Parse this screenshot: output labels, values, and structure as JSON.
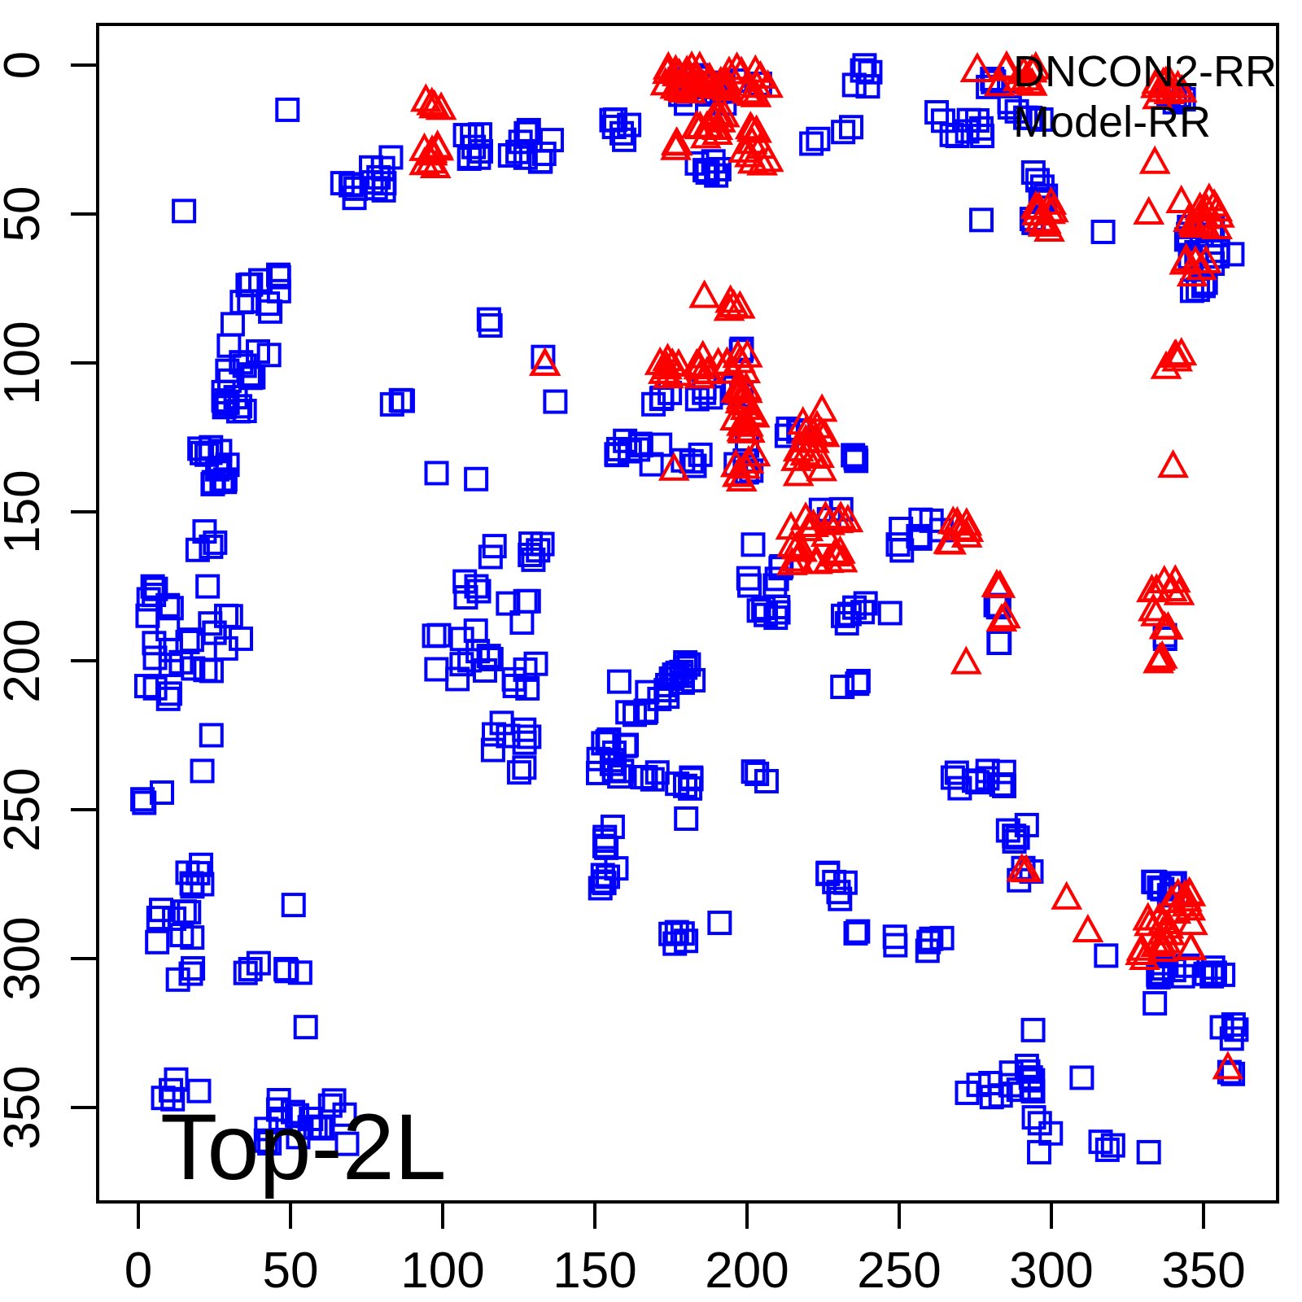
{
  "figure": {
    "background": "#FFFFFF",
    "text_color": "#000000"
  },
  "chart_data": {
    "type": "scatter",
    "title": "",
    "xlabel": "",
    "ylabel": "",
    "annotation": "Top-2L",
    "grid": false,
    "x_axis": {
      "ticks": [
        0,
        50,
        100,
        150,
        200,
        250,
        300,
        350
      ],
      "range": [
        -14,
        375
      ]
    },
    "y_axis": {
      "ticks": [
        0,
        50,
        100,
        150,
        200,
        250,
        300,
        350
      ],
      "range": [
        375,
        -14
      ],
      "reversed": true
    },
    "legend": {
      "position": "top-right",
      "entries": [
        {
          "label": "DNCON2-RR",
          "marker": "open-triangle",
          "color": "#FF0000"
        },
        {
          "label": "Model-RR",
          "marker": "open-square",
          "color": "#0000FF"
        }
      ]
    },
    "cluster_format": "[x, y, count, x_spread, y_spread] — residue-residue contact clusters read from plot",
    "series": [
      {
        "name": "Model-RR",
        "marker": "open-square",
        "color": "#0000FF",
        "clusters": [
          [
            49,
            15,
            1,
            0,
            0
          ],
          [
            75,
            40,
            12,
            8,
            6
          ],
          [
            83,
            31,
            1,
            0,
            0
          ],
          [
            112,
            28,
            8,
            5,
            5
          ],
          [
            15,
            49,
            1,
            0,
            0
          ],
          [
            40,
            77,
            10,
            7,
            8
          ],
          [
            31,
            87,
            1,
            0,
            0
          ],
          [
            36,
            100,
            10,
            8,
            6
          ],
          [
            30,
            113,
            9,
            5,
            4
          ],
          [
            85,
            114,
            3,
            2,
            2
          ],
          [
            130,
            27,
            10,
            8,
            7
          ],
          [
            158,
            23,
            6,
            4,
            5
          ],
          [
            190,
            8,
            16,
            18,
            5
          ],
          [
            238,
            3,
            5,
            4,
            5
          ],
          [
            221,
            25,
            2,
            3,
            2
          ],
          [
            233,
            22,
            2,
            2,
            2
          ],
          [
            187,
            35,
            6,
            4,
            3
          ],
          [
            197,
            95,
            2,
            2,
            1
          ],
          [
            115,
            86,
            2,
            1,
            2
          ],
          [
            270,
            20,
            8,
            8,
            5
          ],
          [
            292,
            16,
            6,
            8,
            4
          ],
          [
            281,
            6,
            4,
            3,
            4
          ],
          [
            297,
            45,
            8,
            4,
            9
          ],
          [
            277,
            52,
            1,
            0,
            0
          ],
          [
            317,
            56,
            1,
            0,
            0
          ],
          [
            352,
            60,
            14,
            8,
            7
          ],
          [
            348,
            74,
            4,
            3,
            2
          ],
          [
            340,
            10,
            4,
            4,
            4
          ],
          [
            22,
            128,
            6,
            5,
            3
          ],
          [
            27,
            137,
            8,
            6,
            4
          ],
          [
            98,
            137,
            1,
            0,
            0
          ],
          [
            111,
            139,
            1,
            0,
            0
          ],
          [
            22,
            160,
            4,
            4,
            4
          ],
          [
            18,
            190,
            26,
            16,
            16
          ],
          [
            7,
            211,
            4,
            6,
            3
          ],
          [
            24,
            225,
            1,
            0,
            0
          ],
          [
            105,
            198,
            12,
            12,
            9
          ],
          [
            109,
            177,
            4,
            4,
            4
          ],
          [
            117,
            164,
            2,
            2,
            4
          ],
          [
            118,
            225,
            3,
            2,
            5
          ],
          [
            133,
            98,
            1,
            0,
            0
          ],
          [
            137,
            113,
            1,
            0,
            0
          ],
          [
            172,
            111,
            4,
            4,
            3
          ],
          [
            186,
            112,
            4,
            4,
            4
          ],
          [
            196,
            112,
            3,
            3,
            4
          ],
          [
            199,
            133,
            5,
            3,
            6
          ],
          [
            165,
            128,
            10,
            8,
            7
          ],
          [
            182,
            131,
            4,
            4,
            4
          ],
          [
            217,
            122,
            4,
            4,
            3
          ],
          [
            232,
            130,
            4,
            4,
            3
          ],
          [
            227,
            151,
            3,
            4,
            2
          ],
          [
            207,
            177,
            12,
            9,
            9
          ],
          [
            202,
            161,
            1,
            0,
            0
          ],
          [
            234,
            184,
            6,
            5,
            5
          ],
          [
            247,
            184,
            1,
            0,
            0
          ],
          [
            250,
            160,
            3,
            3,
            5
          ],
          [
            128,
            164,
            5,
            5,
            5
          ],
          [
            125,
            184,
            4,
            4,
            4
          ],
          [
            129,
            206,
            5,
            6,
            5
          ],
          [
            126,
            224,
            4,
            5,
            5
          ],
          [
            158,
            207,
            1,
            0,
            0
          ],
          [
            179,
            203,
            6,
            4,
            4
          ],
          [
            176,
            205,
            4,
            3,
            3
          ],
          [
            170,
            212,
            5,
            4,
            4
          ],
          [
            163,
            219,
            5,
            4,
            4
          ],
          [
            156,
            227,
            6,
            5,
            5
          ],
          [
            157,
            236,
            8,
            6,
            4
          ],
          [
            235,
            209,
            3,
            4,
            3
          ],
          [
            126,
            237,
            2,
            2,
            2
          ],
          [
            168,
            240,
            4,
            4,
            3
          ],
          [
            179,
            240,
            5,
            3,
            4
          ],
          [
            204,
            240,
            3,
            3,
            3
          ],
          [
            180,
            253,
            1,
            0,
            0
          ],
          [
            153,
            259,
            5,
            4,
            4
          ],
          [
            154,
            273,
            6,
            4,
            4
          ],
          [
            177,
            291,
            5,
            4,
            4
          ],
          [
            191,
            288,
            1,
            0,
            0
          ],
          [
            232,
            275,
            6,
            6,
            5
          ],
          [
            236,
            291,
            2,
            1,
            1
          ],
          [
            250,
            295,
            2,
            3,
            3
          ],
          [
            5,
            245,
            3,
            4,
            3
          ],
          [
            21,
            237,
            1,
            0,
            0
          ],
          [
            20,
            272,
            6,
            4,
            4
          ],
          [
            12,
            288,
            8,
            6,
            7
          ],
          [
            16,
            305,
            3,
            3,
            3
          ],
          [
            51,
            282,
            1,
            0,
            0
          ],
          [
            45,
            303,
            6,
            10,
            2
          ],
          [
            55,
            323,
            1,
            0,
            0
          ],
          [
            14,
            344,
            5,
            6,
            4
          ],
          [
            55,
            355,
            18,
            15,
            8
          ],
          [
            276,
            238,
            10,
            10,
            5
          ],
          [
            289,
            257,
            5,
            4,
            4
          ],
          [
            292,
            271,
            3,
            3,
            3
          ],
          [
            318,
            299,
            1,
            0,
            0
          ],
          [
            337,
            278,
            8,
            6,
            4
          ],
          [
            338,
            304,
            8,
            7,
            4
          ],
          [
            352,
            303,
            5,
            6,
            3
          ],
          [
            334,
            315,
            1,
            0,
            0
          ],
          [
            263,
            296,
            4,
            5,
            3
          ],
          [
            294,
            324,
            1,
            0,
            0
          ],
          [
            358,
            324,
            4,
            3,
            4
          ],
          [
            359,
            339,
            2,
            1,
            1
          ],
          [
            283,
            341,
            14,
            14,
            6
          ],
          [
            310,
            340,
            1,
            0,
            0
          ],
          [
            297,
            355,
            3,
            3,
            4
          ],
          [
            296,
            365,
            1,
            0,
            0
          ],
          [
            318,
            364,
            3,
            3,
            3
          ],
          [
            332,
            365,
            1,
            0,
            0
          ],
          [
            259,
            155,
            5,
            5,
            4
          ],
          [
            283,
            181,
            3,
            2,
            2
          ],
          [
            283,
            194,
            2,
            1,
            1
          ],
          [
            337,
            192,
            2,
            1,
            1
          ]
        ]
      },
      {
        "name": "DNCON2-RR",
        "marker": "open-triangle",
        "color": "#FF0000",
        "clusters": [
          [
            97,
            14,
            5,
            4,
            3
          ],
          [
            97,
            31,
            8,
            5,
            4
          ],
          [
            190,
            6,
            40,
            18,
            5
          ],
          [
            188,
            22,
            12,
            6,
            6
          ],
          [
            203,
            28,
            10,
            5,
            7
          ],
          [
            175,
            30,
            3,
            3,
            4
          ],
          [
            289,
            4,
            10,
            7,
            4
          ],
          [
            337,
            10,
            10,
            6,
            4
          ],
          [
            334,
            33,
            1,
            0,
            0
          ],
          [
            297,
            50,
            10,
            4,
            6
          ],
          [
            332,
            50,
            1,
            0,
            0
          ],
          [
            349,
            50,
            14,
            7,
            5
          ],
          [
            347,
            67,
            6,
            4,
            4
          ],
          [
            186,
            78,
            1,
            0,
            0
          ],
          [
            197,
            82,
            4,
            3,
            3
          ],
          [
            176,
            101,
            8,
            5,
            4
          ],
          [
            187,
            101,
            8,
            5,
            4
          ],
          [
            198,
            101,
            8,
            5,
            4
          ],
          [
            133,
            100,
            2,
            1,
            1
          ],
          [
            199,
            124,
            26,
            4,
            16
          ],
          [
            176,
            136,
            1,
            0,
            0
          ],
          [
            221,
            128,
            16,
            5,
            12
          ],
          [
            224,
            160,
            22,
            10,
            8
          ],
          [
            340,
            100,
            5,
            4,
            3
          ],
          [
            340,
            135,
            1,
            0,
            0
          ],
          [
            268,
            157,
            8,
            5,
            4
          ],
          [
            283,
            176,
            2,
            1,
            1
          ],
          [
            284,
            186,
            2,
            1,
            1
          ],
          [
            272,
            201,
            1,
            0,
            0
          ],
          [
            337,
            176,
            6,
            5,
            3
          ],
          [
            334,
            184,
            2,
            1,
            1
          ],
          [
            338,
            189,
            2,
            1,
            1
          ],
          [
            336,
            200,
            3,
            1,
            2
          ],
          [
            291,
            270,
            2,
            1,
            1
          ],
          [
            305,
            280,
            1,
            0,
            0
          ],
          [
            312,
            291,
            1,
            0,
            0
          ],
          [
            338,
            289,
            26,
            9,
            12
          ],
          [
            358,
            337,
            1,
            0,
            0
          ]
        ]
      }
    ]
  }
}
